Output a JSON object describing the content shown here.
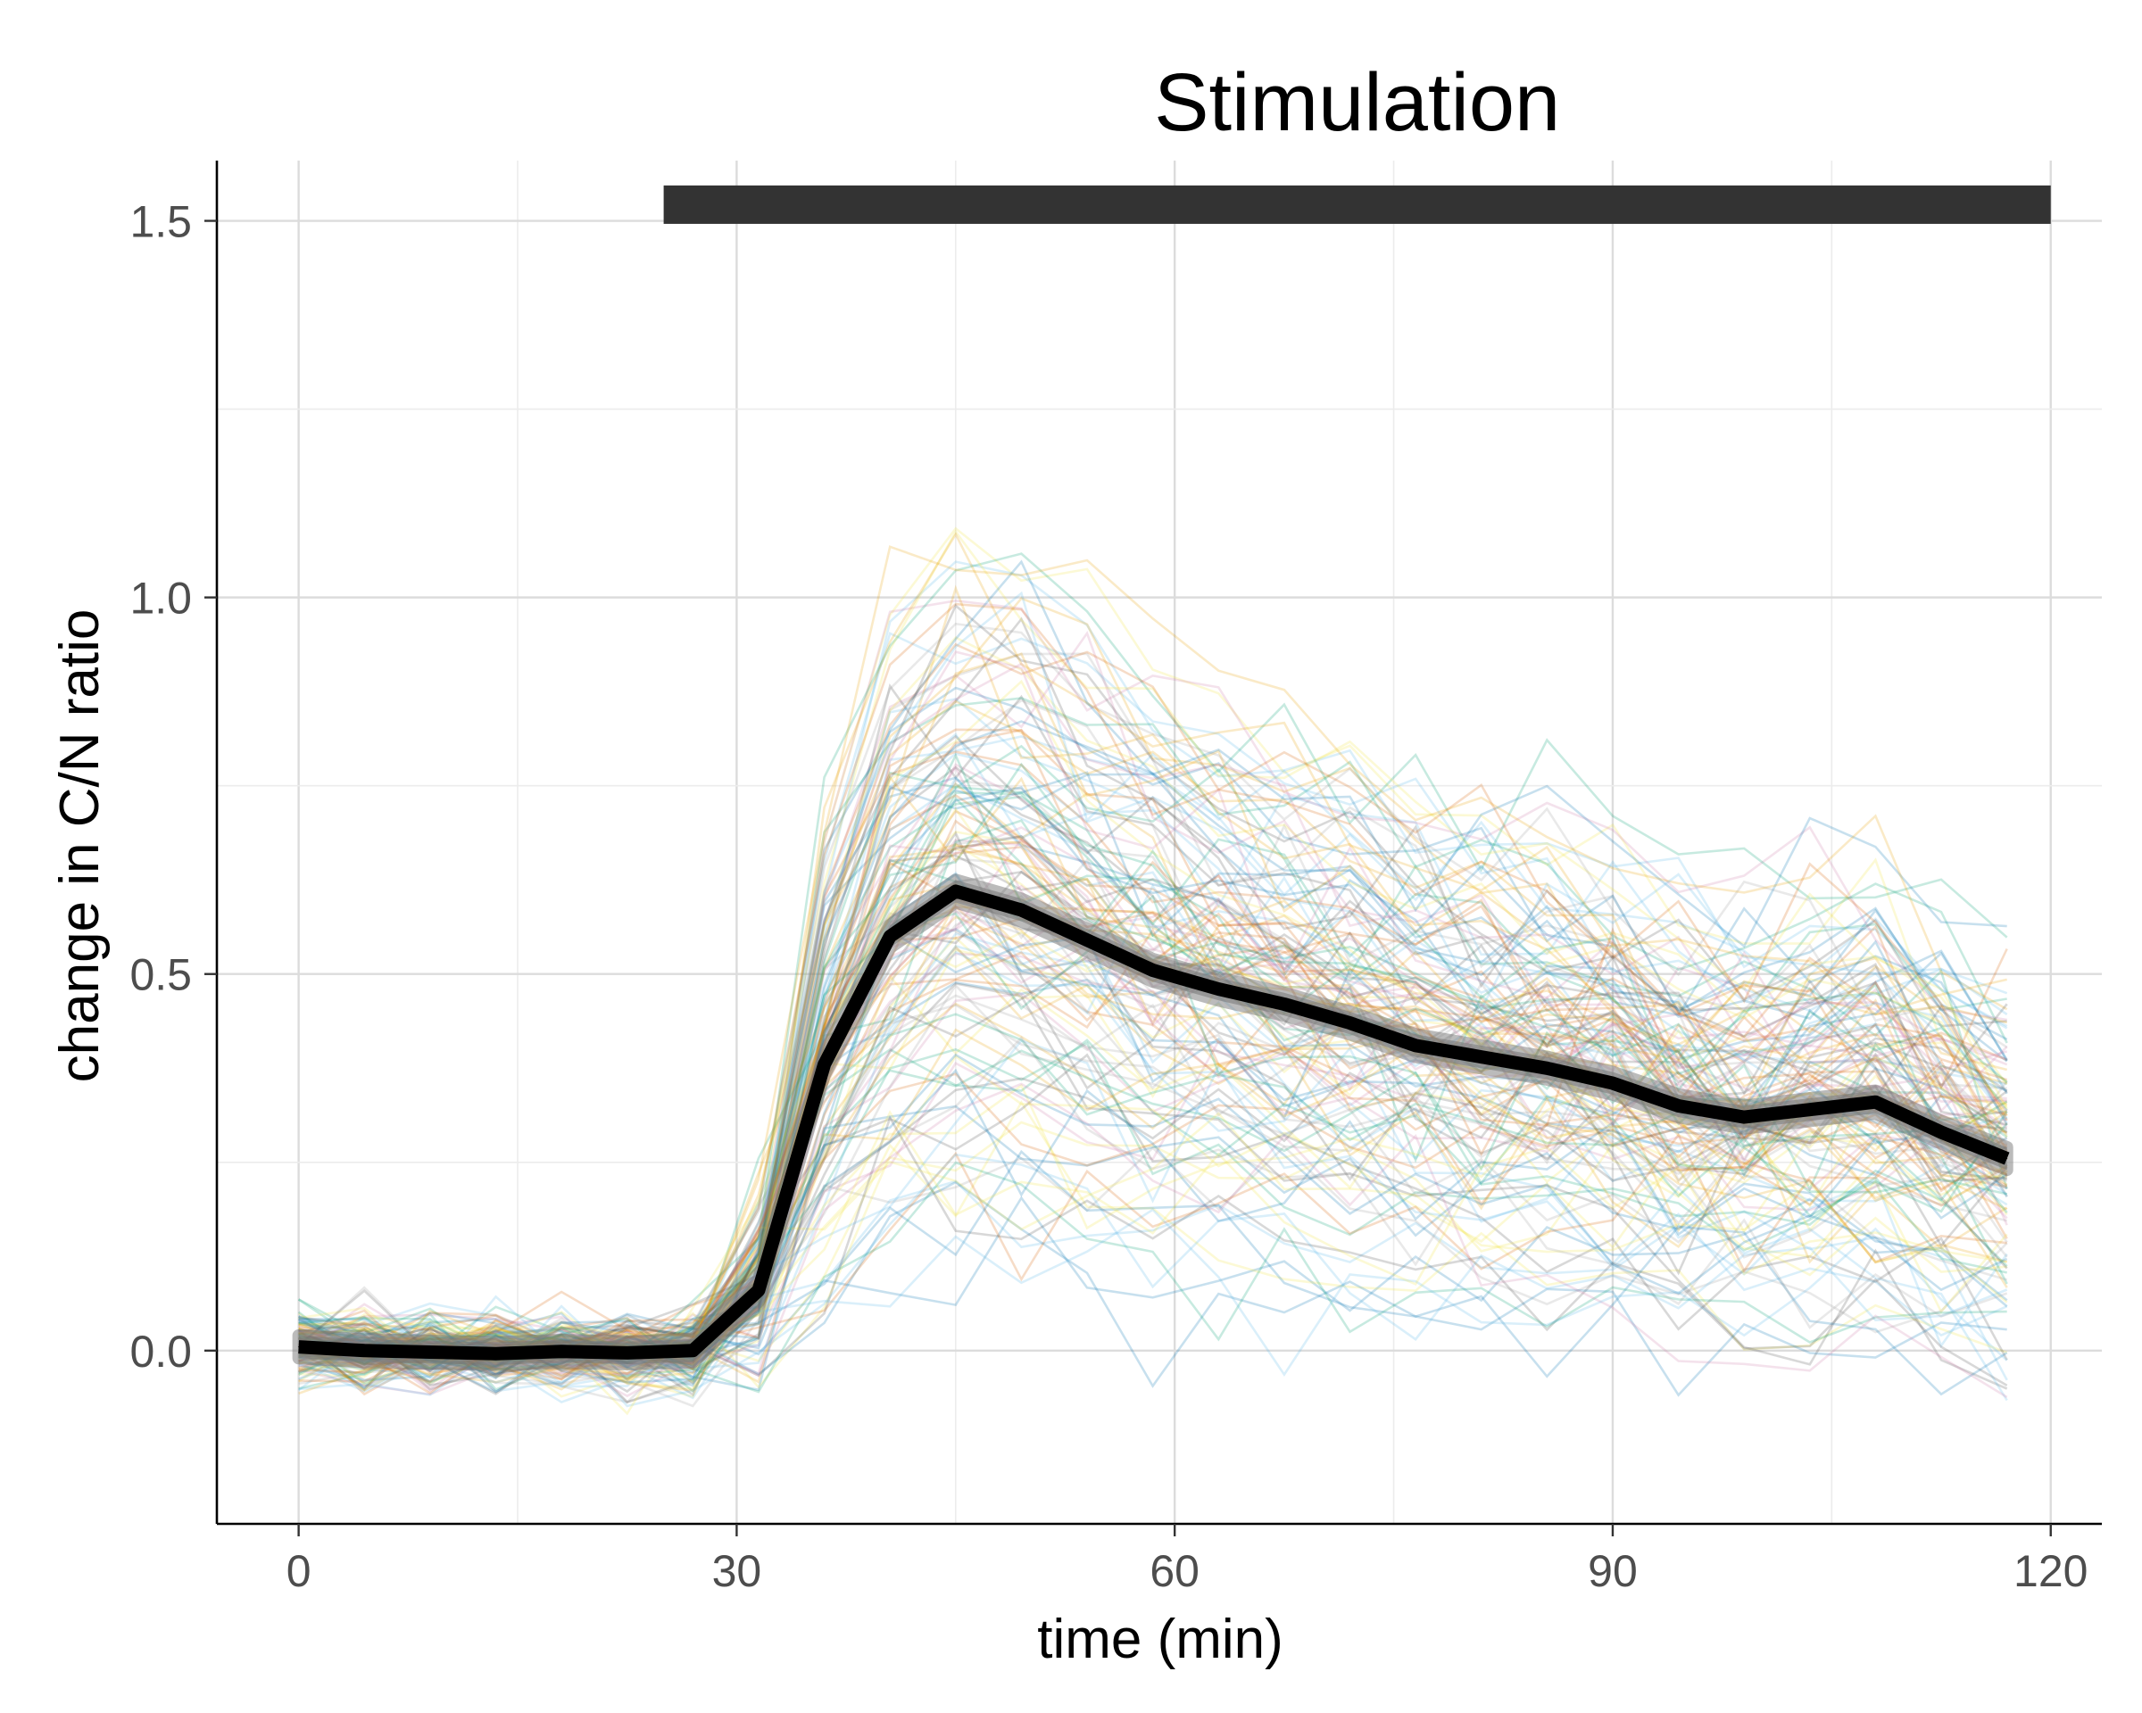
{
  "chart_data": {
    "type": "line",
    "xlabel": "time (min)",
    "ylabel": "change in C/N ratio",
    "xlim": [
      -5.6,
      123.5
    ],
    "ylim": [
      -0.23,
      1.58
    ],
    "x_ticks": [
      0,
      30,
      60,
      90,
      120
    ],
    "x_tick_labels": [
      "0",
      "30",
      "60",
      "90",
      "120"
    ],
    "y_ticks": [
      0.0,
      0.5,
      1.0,
      1.5
    ],
    "y_tick_labels": [
      "0.0",
      "0.5",
      "1.0",
      "1.5"
    ],
    "grid": true,
    "annotation": {
      "label": "Stimulation",
      "x_start": 25,
      "x_end": 120,
      "y": 1.53,
      "color": "#333333"
    },
    "x": [
      0,
      4.5,
      9,
      13.5,
      18,
      22.5,
      27,
      31.5,
      36,
      40.5,
      45,
      49.5,
      54,
      58.5,
      63,
      67.5,
      72,
      76.5,
      81,
      85.5,
      90,
      94.5,
      99,
      103.5,
      108,
      112.5,
      117
    ],
    "series": [
      {
        "values": [
          0.005,
          0.0,
          -0.002,
          -0.004,
          -0.001,
          -0.003,
          0.0,
          0.08,
          0.38,
          0.55,
          0.61,
          0.585,
          0.545,
          0.505,
          0.48,
          0.46,
          0.435,
          0.405,
          0.39,
          0.375,
          0.355,
          0.325,
          0.31,
          0.32,
          0.33,
          0.29,
          0.255
        ],
        "color": "#000000",
        "band": 0.015
      }
    ],
    "individual_traces": {
      "count": 150,
      "palette": [
        "#E69F00",
        "#56B4E9",
        "#009E73",
        "#F0E442",
        "#0072B2",
        "#D55E00",
        "#CC79A7",
        "#999999",
        "#4d4d4d"
      ],
      "opacity": 0.22
    }
  }
}
